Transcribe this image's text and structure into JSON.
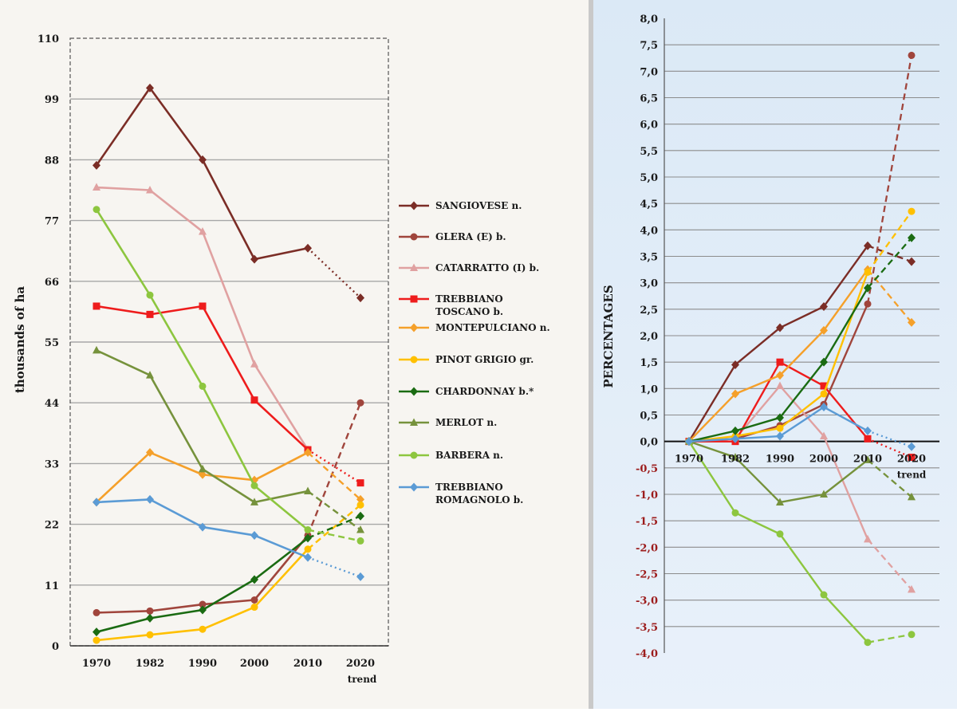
{
  "chart_data": [
    {
      "type": "line",
      "xlabel": "",
      "ylabel": "thousands of ha",
      "categories": [
        "1970",
        "1982",
        "1990",
        "2000",
        "2010",
        "2020"
      ],
      "category_sub": "trend",
      "ylim": [
        0,
        110
      ],
      "yticks": [
        "0",
        "11",
        "22",
        "33",
        "44",
        "55",
        "66",
        "77",
        "88",
        "99",
        "110"
      ],
      "grid": true,
      "legend_position": "right",
      "series": [
        {
          "name": "SANGIOVESE n.",
          "color": "#7b2d26",
          "marker": "diamond",
          "trend": "dotted",
          "values": [
            87,
            101,
            88,
            70,
            72,
            63
          ]
        },
        {
          "name": "GLERA (E) b.",
          "color": "#a0453c",
          "marker": "circle",
          "trend": "dashed",
          "values": [
            6,
            6.3,
            7.5,
            8.3,
            20,
            44
          ]
        },
        {
          "name": "CATARRATTO (I) b.",
          "color": "#e0a1a1",
          "marker": "triangle",
          "trend": "none",
          "values": [
            83,
            82.5,
            75,
            51,
            35.5,
            null
          ]
        },
        {
          "name": "TREBBIANO TOSCANO b.",
          "color": "#ee1c1c",
          "marker": "square",
          "trend": "dotted",
          "values": [
            61.5,
            60,
            61.5,
            44.5,
            35.5,
            29.5
          ]
        },
        {
          "name": "MONTEPULCIANO n.",
          "color": "#f5a02a",
          "marker": "diamond",
          "trend": "dashed",
          "values": [
            26,
            35,
            31,
            30,
            35,
            26.5
          ]
        },
        {
          "name": "PINOT GRIGIO gr.",
          "color": "#ffc000",
          "marker": "circle",
          "trend": "dashed",
          "values": [
            1,
            2,
            3,
            7,
            17.5,
            25.5
          ]
        },
        {
          "name": "CHARDONNAY b.*",
          "color": "#1a6b12",
          "marker": "diamond",
          "trend": "dashed",
          "values": [
            2.5,
            5,
            6.5,
            12,
            19.5,
            23.5
          ]
        },
        {
          "name": "MERLOT n.",
          "color": "#76923c",
          "marker": "triangle",
          "trend": "dashed",
          "values": [
            53.5,
            49,
            32,
            26,
            28,
            21
          ]
        },
        {
          "name": "BARBERA n.",
          "color": "#8dc63f",
          "marker": "circle",
          "trend": "dashed",
          "values": [
            79,
            63.5,
            47,
            29,
            21,
            19
          ]
        },
        {
          "name": "TREBBIANO ROMAGNOLO b.",
          "color": "#5b9bd5",
          "marker": "diamond",
          "trend": "dotted",
          "values": [
            26,
            26.5,
            21.5,
            20,
            16,
            12.5
          ]
        }
      ]
    },
    {
      "type": "line",
      "xlabel": "",
      "ylabel": "PERCENTAGES",
      "categories": [
        "1970",
        "1982",
        "1990",
        "2000",
        "2010",
        "2020"
      ],
      "category_sub": "trend",
      "ylim": [
        -4,
        8
      ],
      "yticks": [
        "8,0",
        "7,5",
        "7,0",
        "6,5",
        "6,0",
        "5,5",
        "5,0",
        "4,5",
        "4,0",
        "3,5",
        "3,0",
        "2,5",
        "2,0",
        "1,5",
        "1,0",
        "0,5",
        "0,0",
        "-0,5",
        "-1,0",
        "-1,5",
        "-2,0",
        "-2,5",
        "-3,0",
        "-3,5",
        "-4,0"
      ],
      "grid": true,
      "series": [
        {
          "name": "SANGIOVESE n.",
          "color": "#7b2d26",
          "marker": "diamond",
          "trend": "dashed",
          "values": [
            0,
            1.45,
            2.15,
            2.55,
            3.7,
            3.4
          ]
        },
        {
          "name": "GLERA (E) b.",
          "color": "#a0453c",
          "marker": "circle",
          "trend": "dashed",
          "values": [
            0,
            0.05,
            0.3,
            0.7,
            2.6,
            7.3
          ]
        },
        {
          "name": "CATARRATTO (I) b.",
          "color": "#e0a1a1",
          "marker": "triangle",
          "trend": "dashed",
          "values": [
            0,
            0.05,
            1.05,
            0.1,
            -1.85,
            -2.8
          ]
        },
        {
          "name": "TREBBIANO TOSCANO b.",
          "color": "#ee1c1c",
          "marker": "square",
          "trend": "dotted",
          "values": [
            0,
            0,
            1.5,
            1.05,
            0.05,
            -0.3
          ]
        },
        {
          "name": "MONTEPULCIANO n.",
          "color": "#f5a02a",
          "marker": "diamond",
          "trend": "dashed",
          "values": [
            0,
            0.9,
            1.25,
            2.1,
            3.25,
            2.25
          ]
        },
        {
          "name": "PINOT GRIGIO gr.",
          "color": "#ffc000",
          "marker": "circle",
          "trend": "dashed",
          "values": [
            0,
            0.1,
            0.25,
            0.9,
            3.2,
            4.35
          ]
        },
        {
          "name": "CHARDONNAY b.*",
          "color": "#1a6b12",
          "marker": "diamond",
          "trend": "dashed",
          "values": [
            0,
            0.2,
            0.45,
            1.5,
            2.9,
            3.85
          ]
        },
        {
          "name": "MERLOT n.",
          "color": "#76923c",
          "marker": "triangle",
          "trend": "dashed",
          "values": [
            0,
            -0.3,
            -1.15,
            -1.0,
            -0.35,
            -1.05
          ]
        },
        {
          "name": "BARBERA n.",
          "color": "#8dc63f",
          "marker": "circle",
          "trend": "dashed",
          "values": [
            0,
            -1.35,
            -1.75,
            -2.9,
            -3.8,
            -3.65
          ]
        },
        {
          "name": "TREBBIANO ROMAGNOLO b.",
          "color": "#5b9bd5",
          "marker": "diamond",
          "trend": "dotted",
          "values": [
            0,
            0.05,
            0.1,
            0.65,
            0.2,
            -0.1
          ]
        }
      ]
    }
  ]
}
